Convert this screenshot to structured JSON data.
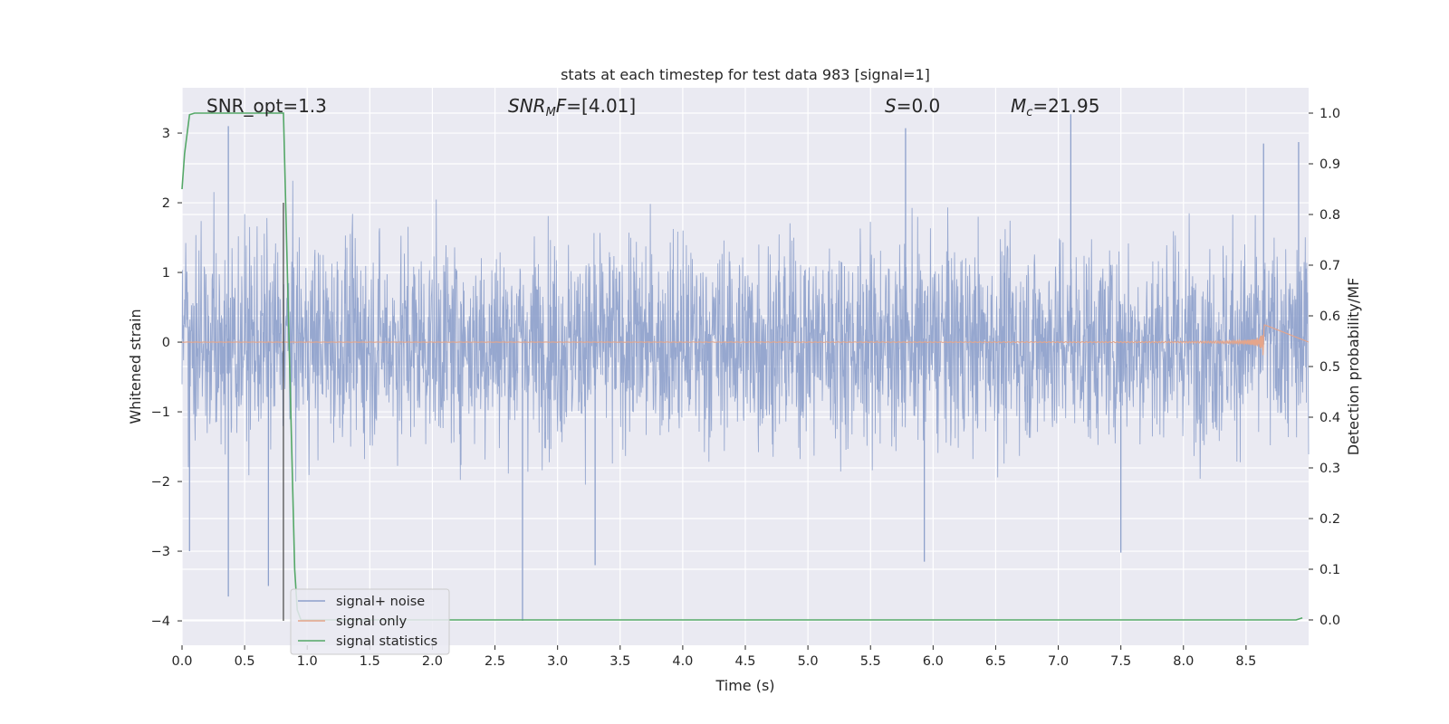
{
  "chart_data": {
    "type": "line",
    "title": "stats at each timestep for test data 983 [signal=1]",
    "xlabel": "Time (s)",
    "ylabel": "Whitened strain",
    "y2label": "Detection probability/MF",
    "xlim": [
      0.0,
      9.0
    ],
    "ylim": [
      -4.35,
      3.65
    ],
    "y2lim": [
      -0.05,
      1.05
    ],
    "x_ticks": [
      "0.0",
      "0.5",
      "1.0",
      "1.5",
      "2.0",
      "2.5",
      "3.0",
      "3.5",
      "4.0",
      "4.5",
      "5.0",
      "5.5",
      "6.0",
      "6.5",
      "7.0",
      "7.5",
      "8.0",
      "8.5"
    ],
    "y_ticks": [
      "3",
      "2",
      "1",
      "0",
      "−1",
      "−2",
      "−3",
      "−4"
    ],
    "y2_ticks": [
      "1.0",
      "0.9",
      "0.8",
      "0.7",
      "0.6",
      "0.5",
      "0.4",
      "0.3",
      "0.2",
      "0.1",
      "0.0"
    ],
    "grid": true,
    "legend_position": "lower-left",
    "annotations": {
      "snr_opt": "SNR_opt=1.3",
      "snr_mf_prefix": "SNR",
      "snr_mf_sub": "M",
      "snr_mf_suffix": "F=[4.01]",
      "s_name": "S",
      "s_value": "=0.0",
      "mc_name": "M",
      "mc_sub": "c",
      "mc_value": "=21.95"
    },
    "marker_line_x": 0.81,
    "series": [
      {
        "name": "signal+ noise",
        "color": "#8da0cb",
        "envelope_typical": [
          -1.9,
          1.85
        ],
        "extremes": [
          {
            "x": 0.37,
            "y": 3.1
          },
          {
            "x": 0.37,
            "y": -3.65
          },
          {
            "x": 0.06,
            "y": -3.0
          },
          {
            "x": 0.69,
            "y": -3.5
          },
          {
            "x": 2.72,
            "y": -4.0
          },
          {
            "x": 3.3,
            "y": -3.2
          },
          {
            "x": 5.78,
            "y": 3.07
          },
          {
            "x": 5.93,
            "y": -3.15
          },
          {
            "x": 7.1,
            "y": 3.27
          },
          {
            "x": 7.5,
            "y": -3.02
          },
          {
            "x": 8.92,
            "y": 2.87
          },
          {
            "x": 8.64,
            "y": 2.85
          }
        ]
      },
      {
        "name": "signal only",
        "color": "#e5a58a",
        "chirp_end_x": 8.65,
        "chirp_peak_amplitude": 0.27
      },
      {
        "name": "signal statistics",
        "color": "#55a868",
        "axis": "right",
        "x": [
          0.0,
          0.02,
          0.06,
          0.1,
          0.2,
          0.5,
          0.75,
          0.81,
          0.85,
          0.9,
          0.92,
          0.95,
          8.9,
          8.95
        ],
        "y": [
          0.85,
          0.92,
          0.997,
          1.0,
          1.0,
          1.0,
          1.0,
          1.0,
          0.6,
          0.1,
          0.02,
          0.0,
          0.0,
          0.004
        ]
      }
    ]
  }
}
